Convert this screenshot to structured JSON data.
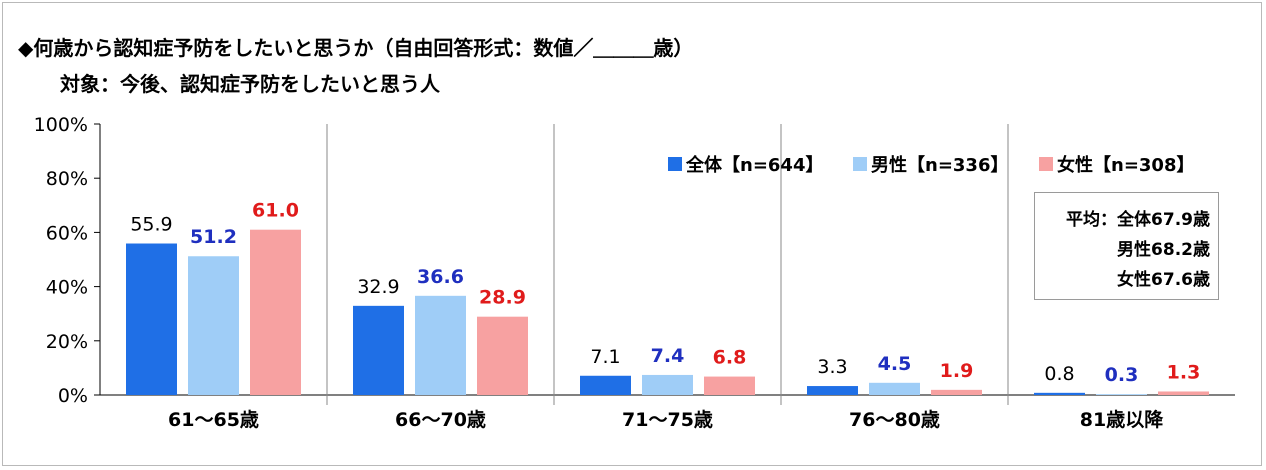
{
  "title": "◆何歳から認知症予防をしたいと思うか（自由回答形式：数値／＿＿＿歳）",
  "subtitle": "対象：今後、認知症予防をしたいと思う人",
  "colors": {
    "total": "#1f6fe6",
    "male": "#9fcdf7",
    "female": "#f7a1a1",
    "label_total": "#000000",
    "label_male": "#1f2fbf",
    "label_female": "#e01b1b"
  },
  "average_box": {
    "line1": "平均：全体67.9歳",
    "line2": "男性68.2歳",
    "line3": "女性67.6歳"
  },
  "chart_data": {
    "type": "bar",
    "categories": [
      "61～65歳",
      "66～70歳",
      "71～75歳",
      "76～80歳",
      "81歳以降"
    ],
    "series": [
      {
        "name": "全体【n=644】",
        "values": [
          55.9,
          32.9,
          7.1,
          3.3,
          0.8
        ]
      },
      {
        "name": "男性【n=336】",
        "values": [
          51.2,
          36.6,
          7.4,
          4.5,
          0.3
        ]
      },
      {
        "name": "女性【n=308】",
        "values": [
          61.0,
          28.9,
          6.8,
          1.9,
          1.3
        ]
      }
    ],
    "yticks": [
      "0%",
      "20%",
      "40%",
      "60%",
      "80%",
      "100%"
    ],
    "ylim": [
      0,
      100
    ],
    "legend_position": "top-right",
    "grid": false
  }
}
